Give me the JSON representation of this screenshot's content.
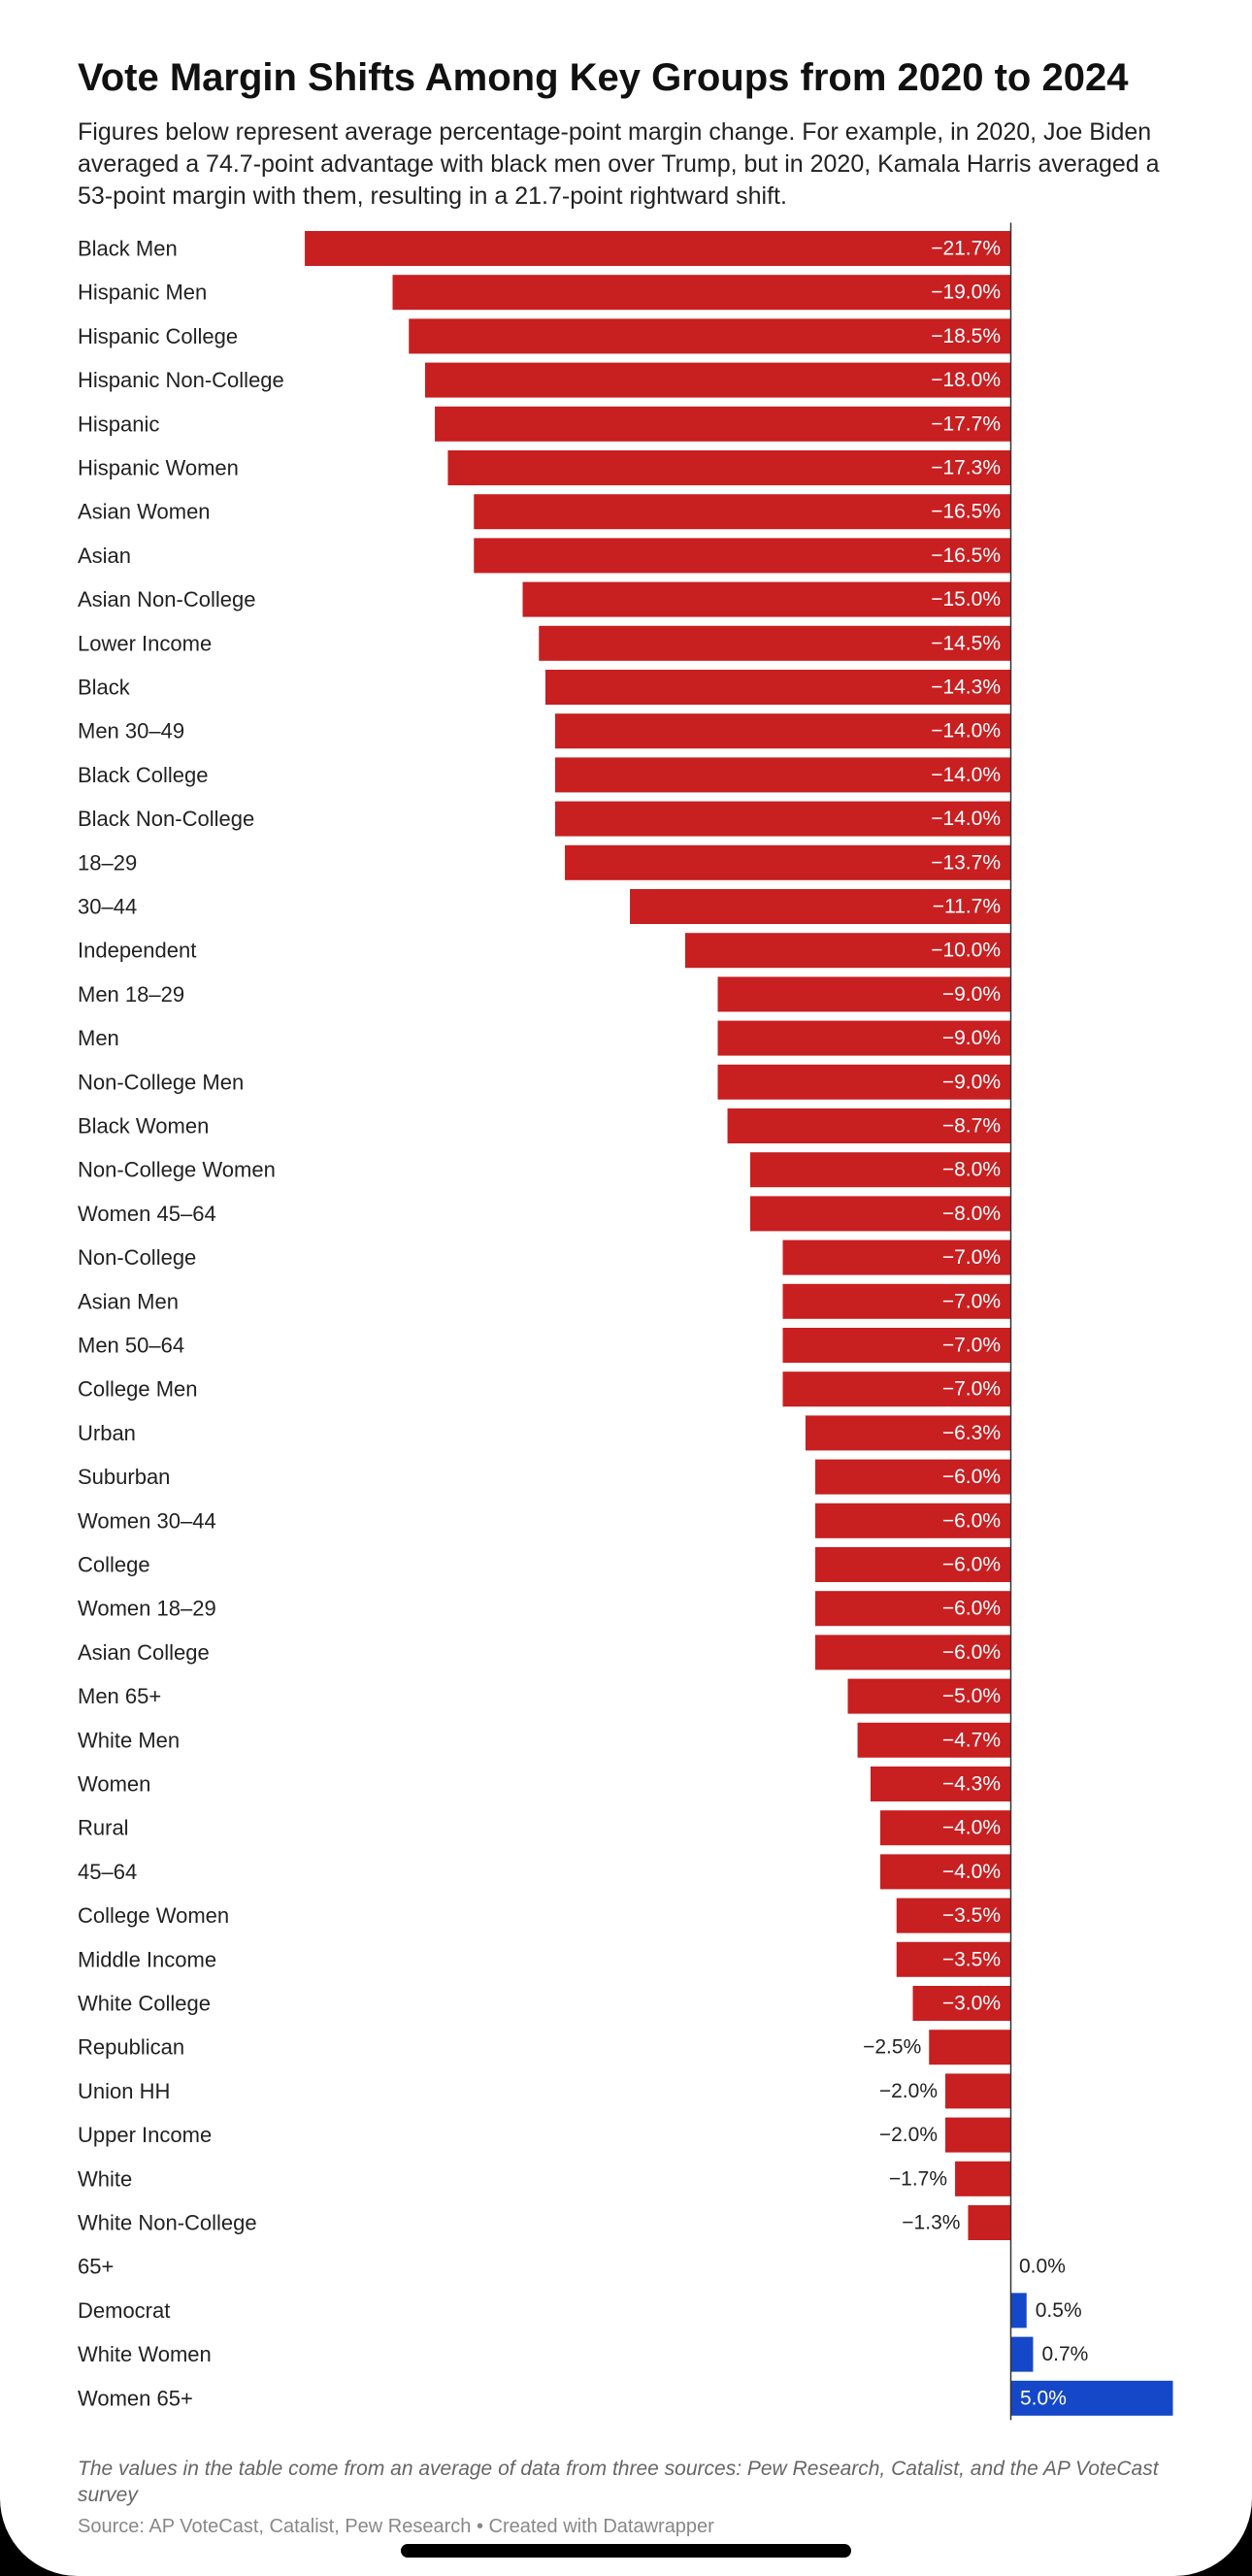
{
  "chart_data": {
    "type": "bar",
    "orientation": "horizontal",
    "title": "Vote Margin Shifts Among Key Groups from 2020 to 2024",
    "subtitle": "Figures below represent average percentage-point margin change. For example, in 2020, Joe Biden averaged a 74.7-point advantage with black men over Trump, but in 2020, Kamala Harris averaged a 53-point margin with them, resulting in a 21.7-point rightward shift.",
    "xlabel": "",
    "ylabel": "",
    "xlim": [
      -21.7,
      5.0
    ],
    "grid": false,
    "colors": {
      "negative": "#c81f21",
      "positive": "#1548c8"
    },
    "categories": [
      "Black Men",
      "Hispanic Men",
      "Hispanic College",
      "Hispanic Non-College",
      "Hispanic",
      "Hispanic Women",
      "Asian Women",
      "Asian",
      "Asian Non-College",
      "Lower Income",
      "Black",
      "Men 30–49",
      "Black College",
      "Black Non-College",
      "18–29",
      "30–44",
      "Independent",
      "Men 18–29",
      "Men",
      "Non-College Men",
      "Black Women",
      "Non-College Women",
      "Women 45–64",
      "Non-College",
      "Asian Men",
      "Men 50–64",
      "College Men",
      "Urban",
      "Suburban",
      "Women 30–44",
      "College",
      "Women 18–29",
      "Asian College",
      "Men 65+",
      "White Men",
      "Women",
      "Rural",
      "45–64",
      "College Women",
      "Middle Income",
      "White College",
      "Republican",
      "Union HH",
      "Upper Income",
      "White",
      "White Non-College",
      "65+",
      "Democrat",
      "White Women",
      "Women 65+"
    ],
    "values": [
      -21.7,
      -19.0,
      -18.5,
      -18.0,
      -17.7,
      -17.3,
      -16.5,
      -16.5,
      -15.0,
      -14.5,
      -14.3,
      -14.0,
      -14.0,
      -14.0,
      -13.7,
      -11.7,
      -10.0,
      -9.0,
      -9.0,
      -9.0,
      -8.7,
      -8.0,
      -8.0,
      -7.0,
      -7.0,
      -7.0,
      -7.0,
      -6.3,
      -6.0,
      -6.0,
      -6.0,
      -6.0,
      -6.0,
      -5.0,
      -4.7,
      -4.3,
      -4.0,
      -4.0,
      -3.5,
      -3.5,
      -3.0,
      -2.5,
      -2.0,
      -2.0,
      -1.7,
      -1.3,
      0.0,
      0.5,
      0.7,
      5.0
    ],
    "value_labels": [
      "−21.7%",
      "−19.0%",
      "−18.5%",
      "−18.0%",
      "−17.7%",
      "−17.3%",
      "−16.5%",
      "−16.5%",
      "−15.0%",
      "−14.5%",
      "−14.3%",
      "−14.0%",
      "−14.0%",
      "−14.0%",
      "−13.7%",
      "−11.7%",
      "−10.0%",
      "−9.0%",
      "−9.0%",
      "−9.0%",
      "−8.7%",
      "−8.0%",
      "−8.0%",
      "−7.0%",
      "−7.0%",
      "−7.0%",
      "−7.0%",
      "−6.3%",
      "−6.0%",
      "−6.0%",
      "−6.0%",
      "−6.0%",
      "−6.0%",
      "−5.0%",
      "−4.7%",
      "−4.3%",
      "−4.0%",
      "−4.0%",
      "−3.5%",
      "−3.5%",
      "−3.0%",
      "−2.5%",
      "−2.0%",
      "−2.0%",
      "−1.7%",
      "−1.3%",
      "0.0%",
      "0.5%",
      "0.7%",
      "5.0%"
    ]
  },
  "footer": {
    "notes": "The values in the table come from an average of data from three sources: Pew Research, Catalist, and the AP VoteCast survey",
    "source": "Source: AP VoteCast, Catalist, Pew Research • Created with Datawrapper"
  }
}
